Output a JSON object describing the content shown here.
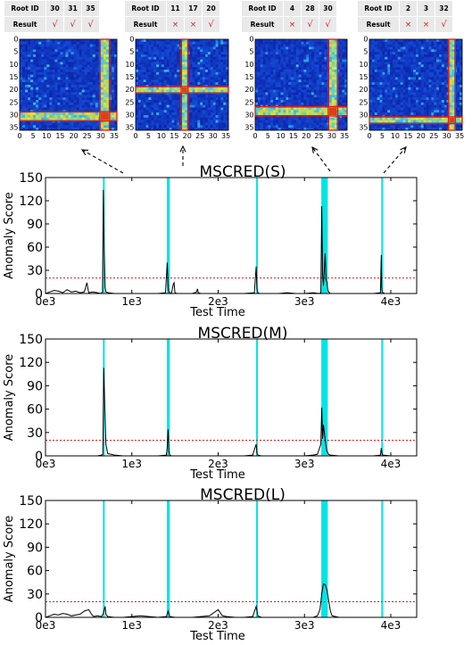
{
  "root_tables": [
    {
      "header": "Root ID",
      "ids": [
        "30",
        "31",
        "35"
      ],
      "result_label": "Result",
      "results": [
        "√",
        "√",
        "√"
      ]
    },
    {
      "header": "Root ID",
      "ids": [
        "11",
        "17",
        "20"
      ],
      "result_label": "Result",
      "results": [
        "×",
        "×",
        "√"
      ]
    },
    {
      "header": "Root ID",
      "ids": [
        "4",
        "28",
        "30"
      ],
      "result_label": "Result",
      "results": [
        "×",
        "√",
        "√"
      ]
    },
    {
      "header": "Root ID",
      "ids": [
        "2",
        "3",
        "32"
      ],
      "result_label": "Result",
      "results": [
        "×",
        "×",
        "√"
      ]
    }
  ],
  "heatmaps": [
    {
      "highlight_rows": [
        29,
        30,
        31
      ],
      "highlight_cols": [
        30,
        31,
        32
      ],
      "tick_labels": [
        "0",
        "5",
        "10",
        "15",
        "20",
        "25",
        "30",
        "35"
      ]
    },
    {
      "highlight_rows": [
        19,
        20
      ],
      "highlight_cols": [
        18,
        19
      ],
      "tick_labels": [
        "0",
        "5",
        "10",
        "15",
        "20",
        "25",
        "30",
        "35"
      ]
    },
    {
      "highlight_rows": [
        27,
        28,
        29
      ],
      "highlight_cols": [
        29,
        30,
        31
      ],
      "tick_labels": [
        "0",
        "5",
        "10",
        "15",
        "20",
        "25",
        "30",
        "35"
      ]
    },
    {
      "highlight_rows": [
        31,
        32
      ],
      "highlight_cols": [
        31,
        32
      ],
      "tick_labels": [
        "0",
        "5",
        "10",
        "15",
        "20",
        "25",
        "30",
        "35"
      ]
    }
  ],
  "colors": {
    "spike_band": "#00e5e5",
    "threshold": "#e41a1c",
    "line": "#000000",
    "heat_low": "#0a1a9e",
    "heat_high": "#d00000"
  },
  "chart_data": [
    {
      "type": "line",
      "title": "MSCRED(S)",
      "xlabel": "Test Time",
      "ylabel": "Anomaly Score",
      "xlim": [
        0,
        4300
      ],
      "ylim": [
        0,
        150
      ],
      "yticks": [
        0,
        30,
        60,
        90,
        120,
        150
      ],
      "xticks": [
        0,
        1000,
        2000,
        3000,
        4000
      ],
      "xtick_labels": [
        "0e3",
        "1e3",
        "2e3",
        "3e3",
        "4e3"
      ],
      "threshold": 20,
      "anomaly_bands": [
        [
          665,
          685
        ],
        [
          1405,
          1440
        ],
        [
          2440,
          2458
        ],
        [
          3195,
          3270
        ],
        [
          3890,
          3905
        ]
      ],
      "x": [
        0,
        50,
        100,
        150,
        200,
        250,
        300,
        350,
        400,
        450,
        480,
        500,
        550,
        600,
        640,
        660,
        670,
        680,
        690,
        700,
        730,
        800,
        900,
        1000,
        1100,
        1200,
        1300,
        1390,
        1410,
        1420,
        1430,
        1440,
        1460,
        1480,
        1490,
        1500,
        1520,
        1600,
        1700,
        1750,
        1760,
        1770,
        1800,
        1900,
        2000,
        2100,
        2200,
        2300,
        2420,
        2440,
        2450,
        2460,
        2480,
        2500,
        2600,
        2700,
        2800,
        2900,
        3000,
        3100,
        3170,
        3190,
        3200,
        3210,
        3220,
        3240,
        3250,
        3260,
        3270,
        3280,
        3290,
        3300,
        3400,
        3500,
        3600,
        3700,
        3800,
        3880,
        3890,
        3895,
        3900,
        3910,
        3930,
        4000,
        4100,
        4200,
        4300
      ],
      "y": [
        0,
        2,
        4,
        3,
        1,
        5,
        2,
        3,
        1,
        2,
        14,
        1,
        2,
        1,
        0,
        2,
        134,
        60,
        8,
        2,
        1,
        0,
        0,
        0,
        0,
        0,
        0,
        1,
        40,
        8,
        2,
        1,
        0,
        12,
        14,
        1,
        0,
        0,
        0,
        2,
        6,
        1,
        0,
        0,
        0,
        0,
        0,
        0,
        1,
        35,
        6,
        1,
        0,
        0,
        0,
        0,
        1,
        0,
        0,
        1,
        0,
        1,
        113,
        25,
        10,
        52,
        18,
        14,
        5,
        2,
        1,
        0,
        0,
        0,
        0,
        0,
        0,
        1,
        50,
        8,
        2,
        1,
        0,
        0,
        0,
        0,
        0
      ]
    },
    {
      "type": "line",
      "title": "MSCRED(M)",
      "xlabel": "Test Time",
      "ylabel": "Anomaly Score",
      "xlim": [
        0,
        4300
      ],
      "ylim": [
        0,
        150
      ],
      "yticks": [
        0,
        30,
        60,
        90,
        120,
        150
      ],
      "xticks": [
        0,
        1000,
        2000,
        3000,
        4000
      ],
      "xtick_labels": [
        "0e3",
        "1e3",
        "2e3",
        "3e3",
        "4e3"
      ],
      "threshold": 20,
      "anomaly_bands": [
        [
          665,
          685
        ],
        [
          1405,
          1440
        ],
        [
          2440,
          2458
        ],
        [
          3195,
          3270
        ],
        [
          3890,
          3905
        ]
      ],
      "x": [
        0,
        100,
        200,
        300,
        400,
        500,
        600,
        650,
        665,
        675,
        685,
        700,
        720,
        800,
        900,
        1000,
        1100,
        1200,
        1300,
        1400,
        1410,
        1420,
        1430,
        1440,
        1460,
        1500,
        1600,
        1700,
        1800,
        1900,
        2000,
        2100,
        2200,
        2300,
        2400,
        2440,
        2450,
        2460,
        2500,
        2600,
        2700,
        2800,
        2900,
        3000,
        3100,
        3150,
        3190,
        3200,
        3210,
        3220,
        3240,
        3250,
        3260,
        3280,
        3300,
        3400,
        3500,
        3600,
        3700,
        3800,
        3880,
        3890,
        3900,
        3910,
        4000,
        4100,
        4200,
        4300
      ],
      "y": [
        0,
        0,
        0,
        0,
        0,
        0,
        0,
        1,
        2,
        113,
        70,
        15,
        3,
        1,
        0,
        0,
        0,
        0,
        0,
        1,
        10,
        34,
        6,
        1,
        0,
        0,
        0,
        0,
        0,
        0,
        0,
        0,
        0,
        0,
        1,
        15,
        3,
        1,
        0,
        0,
        0,
        0,
        0,
        0,
        1,
        2,
        15,
        62,
        22,
        40,
        20,
        12,
        6,
        2,
        1,
        0,
        0,
        0,
        0,
        0,
        1,
        10,
        2,
        1,
        0,
        0,
        0,
        0
      ]
    },
    {
      "type": "line",
      "title": "MSCRED(L)",
      "xlabel": "Test Time",
      "ylabel": "Anomaly Score",
      "xlim": [
        0,
        4300
      ],
      "ylim": [
        0,
        150
      ],
      "yticks": [
        0,
        30,
        60,
        90,
        120,
        150
      ],
      "xticks": [
        0,
        1000,
        2000,
        3000,
        4000
      ],
      "xtick_labels": [
        "0e3",
        "1e3",
        "2e3",
        "3e3",
        "4e3"
      ],
      "threshold": 20,
      "anomaly_bands": [
        [
          665,
          685
        ],
        [
          1405,
          1440
        ],
        [
          2440,
          2458
        ],
        [
          3195,
          3270
        ],
        [
          3890,
          3905
        ]
      ],
      "x": [
        0,
        50,
        100,
        150,
        200,
        250,
        300,
        350,
        400,
        450,
        500,
        540,
        560,
        600,
        650,
        670,
        690,
        700,
        720,
        800,
        900,
        1000,
        1100,
        1200,
        1300,
        1400,
        1420,
        1440,
        1500,
        1600,
        1700,
        1800,
        1900,
        2000,
        2050,
        2100,
        2200,
        2300,
        2400,
        2440,
        2460,
        2500,
        2600,
        2700,
        2800,
        2900,
        3000,
        3100,
        3150,
        3180,
        3200,
        3220,
        3240,
        3260,
        3280,
        3300,
        3320,
        3400,
        3500,
        3600,
        3700,
        3800,
        3900,
        4000,
        4100,
        4200,
        4300
      ],
      "y": [
        0,
        2,
        4,
        3,
        5,
        4,
        2,
        3,
        4,
        8,
        10,
        3,
        1,
        2,
        1,
        5,
        14,
        4,
        1,
        0,
        0,
        1,
        2,
        1,
        0,
        1,
        8,
        1,
        0,
        0,
        0,
        1,
        2,
        10,
        2,
        1,
        0,
        0,
        1,
        14,
        2,
        0,
        0,
        0,
        0,
        0,
        0,
        0,
        2,
        10,
        30,
        43,
        42,
        35,
        22,
        8,
        2,
        0,
        0,
        0,
        0,
        0,
        0,
        0,
        0,
        0,
        0
      ]
    }
  ]
}
